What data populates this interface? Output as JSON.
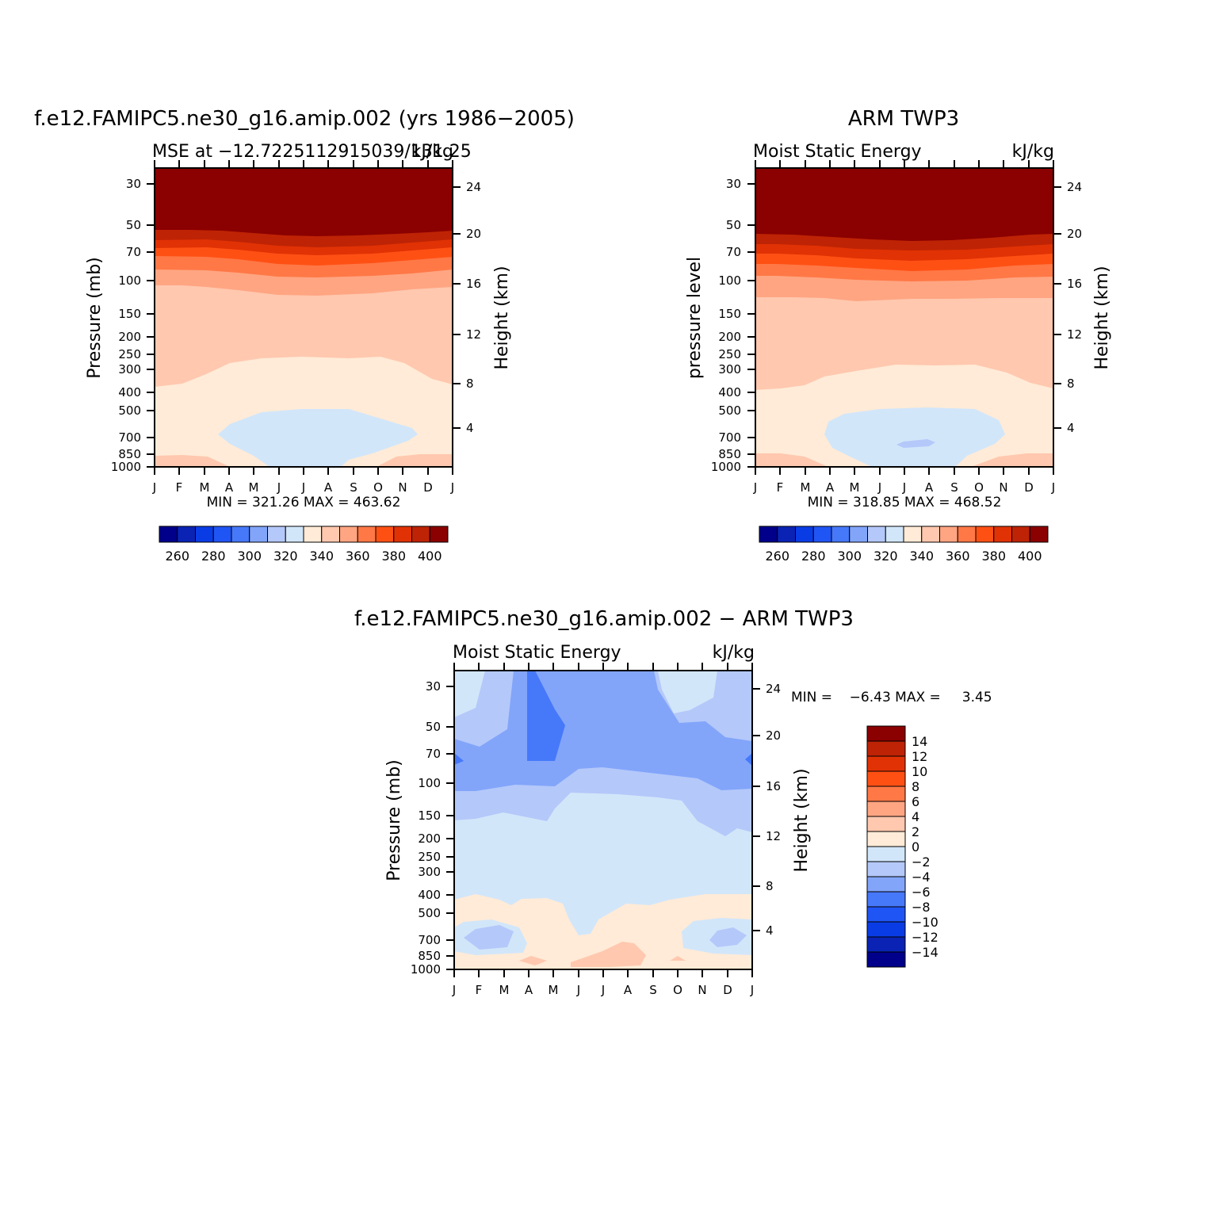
{
  "chart_data": [
    {
      "type": "contour",
      "title": "f.e12.FAMIPC5.ne30_g16.amip.002 (yrs 1986−2005)",
      "left_string": "MSE at −12.7225112915039/131.25",
      "right_string": "kJ/kg",
      "ylabel": "Pressure (mb)",
      "ylabel_right": "Height (km)",
      "x_ticks": [
        "J",
        "F",
        "M",
        "A",
        "M",
        "J",
        "J",
        "A",
        "S",
        "O",
        "N",
        "D",
        "J"
      ],
      "y_ticks": [
        "30",
        "50",
        "70",
        "100",
        "150",
        "200",
        "250",
        "300",
        "400",
        "500",
        "700",
        "850",
        "1000"
      ],
      "y_right_ticks": [
        "24",
        "20",
        "16",
        "12",
        "8",
        "4"
      ],
      "stats": "MIN = 321.26 MAX = 463.62",
      "colorbar_labels": [
        "260",
        "280",
        "300",
        "320",
        "340",
        "360",
        "380",
        "400"
      ],
      "min": 321.26,
      "max": 463.62
    },
    {
      "type": "contour",
      "title": "ARM TWP3",
      "left_string": "Moist Static Energy",
      "right_string": "kJ/kg",
      "ylabel": "pressure level",
      "ylabel_right": "Height (km)",
      "x_ticks": [
        "J",
        "F",
        "M",
        "A",
        "M",
        "J",
        "J",
        "A",
        "S",
        "O",
        "N",
        "D",
        "J"
      ],
      "y_ticks": [
        "30",
        "50",
        "70",
        "100",
        "150",
        "200",
        "250",
        "300",
        "400",
        "500",
        "700",
        "850",
        "1000"
      ],
      "y_right_ticks": [
        "24",
        "20",
        "16",
        "12",
        "8",
        "4"
      ],
      "stats": "MIN = 318.85 MAX = 468.52",
      "colorbar_labels": [
        "260",
        "280",
        "300",
        "320",
        "340",
        "360",
        "380",
        "400"
      ],
      "min": 318.85,
      "max": 468.52
    },
    {
      "type": "contour",
      "title": "f.e12.FAMIPC5.ne30_g16.amip.002 − ARM TWP3",
      "left_string": "Moist Static Energy",
      "right_string": "kJ/kg",
      "ylabel": "Pressure (mb)",
      "ylabel_right": "Height (km)",
      "x_ticks": [
        "J",
        "F",
        "M",
        "A",
        "M",
        "J",
        "J",
        "A",
        "S",
        "O",
        "N",
        "D",
        "J"
      ],
      "y_ticks": [
        "30",
        "50",
        "70",
        "100",
        "150",
        "200",
        "250",
        "300",
        "400",
        "500",
        "700",
        "850",
        "1000"
      ],
      "y_right_ticks": [
        "24",
        "20",
        "16",
        "12",
        "8",
        "4"
      ],
      "stats": "MIN =    −6.43 MAX =     3.45",
      "colorbar_labels": [
        "14",
        "12",
        "10",
        "8",
        "6",
        "4",
        "2",
        "0",
        "−2",
        "−4",
        "−6",
        "−8",
        "−10",
        "−12",
        "−14"
      ],
      "min": -6.43,
      "max": 3.45
    }
  ],
  "palette": [
    "#00008b",
    "#0a23b4",
    "#0a3ce6",
    "#2055f5",
    "#4678fa",
    "#82a5fa",
    "#b4c8fa",
    "#d2e6fa",
    "#ffebd7",
    "#ffc8af",
    "#ffa582",
    "#ff7846",
    "#ff5014",
    "#e13205",
    "#be2305",
    "#8b0000"
  ]
}
